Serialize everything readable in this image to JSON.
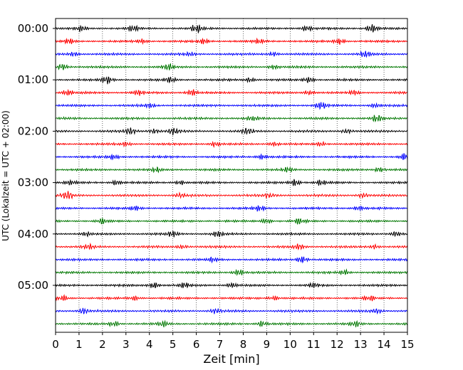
{
  "chart_data": {
    "type": "line",
    "subtype": "helicorder",
    "xlabel": "Zeit  [min]",
    "ylabel": "UTC (Lokalzeit = UTC + 02:00)",
    "xlim": [
      0,
      15
    ],
    "x_ticks": [
      "0",
      "1",
      "2",
      "3",
      "4",
      "5",
      "6",
      "7",
      "8",
      "9",
      "10",
      "11",
      "12",
      "13",
      "14",
      "15"
    ],
    "y_tick_labels": [
      "00:00",
      "01:00",
      "02:00",
      "03:00",
      "04:00",
      "05:00"
    ],
    "grid": "vertical dotted",
    "minutes_per_line": 15,
    "trace_colors": [
      "#000000",
      "#ff0000",
      "#0000ff",
      "#007700"
    ],
    "traces": [
      {
        "start": "00:00",
        "color": "#000000",
        "bursts": [
          [
            1.1,
            0.6
          ],
          [
            3.3,
            0.7
          ],
          [
            6.0,
            1.0
          ],
          [
            10.7,
            0.7
          ],
          [
            13.5,
            1.0
          ]
        ]
      },
      {
        "start": "00:15",
        "color": "#ff0000",
        "bursts": [
          [
            0.6,
            0.6
          ],
          [
            3.7,
            0.5
          ],
          [
            6.3,
            0.6
          ],
          [
            8.7,
            0.5
          ],
          [
            12.1,
            0.8
          ]
        ]
      },
      {
        "start": "00:30",
        "color": "#0000ff",
        "bursts": [
          [
            0.8,
            0.5
          ],
          [
            5.7,
            0.5
          ],
          [
            9.3,
            0.5
          ],
          [
            13.2,
            0.8
          ]
        ]
      },
      {
        "start": "00:45",
        "color": "#007700",
        "bursts": [
          [
            0.3,
            0.7
          ],
          [
            4.8,
            0.7
          ],
          [
            9.3,
            0.5
          ]
        ]
      },
      {
        "start": "01:00",
        "color": "#000000",
        "bursts": [
          [
            2.2,
            1.0
          ],
          [
            4.9,
            0.7
          ],
          [
            8.3,
            0.6
          ],
          [
            10.8,
            0.7
          ]
        ]
      },
      {
        "start": "01:15",
        "color": "#ff0000",
        "bursts": [
          [
            0.5,
            0.7
          ],
          [
            3.5,
            0.6
          ],
          [
            5.8,
            0.8
          ],
          [
            10.8,
            0.5
          ],
          [
            12.7,
            0.5
          ]
        ]
      },
      {
        "start": "01:30",
        "color": "#0000ff",
        "bursts": [
          [
            4.0,
            0.5
          ],
          [
            11.3,
            0.9
          ],
          [
            13.6,
            0.5
          ]
        ]
      },
      {
        "start": "01:45",
        "color": "#007700",
        "bursts": [
          [
            8.4,
            0.5
          ],
          [
            13.7,
            0.9
          ]
        ]
      },
      {
        "start": "02:00",
        "color": "#000000",
        "bursts": [
          [
            3.2,
            0.8
          ],
          [
            4.2,
            0.6
          ],
          [
            5.0,
            0.8
          ],
          [
            8.2,
            0.7
          ],
          [
            12.4,
            0.5
          ]
        ]
      },
      {
        "start": "02:15",
        "color": "#ff0000",
        "bursts": [
          [
            3.0,
            0.5
          ],
          [
            6.8,
            0.6
          ],
          [
            9.3,
            0.5
          ],
          [
            11.3,
            0.5
          ]
        ]
      },
      {
        "start": "02:30",
        "color": "#0000ff",
        "bursts": [
          [
            2.5,
            0.6
          ],
          [
            8.8,
            0.6
          ],
          [
            14.9,
            0.9
          ]
        ]
      },
      {
        "start": "02:45",
        "color": "#007700",
        "bursts": [
          [
            4.3,
            0.5
          ],
          [
            9.9,
            0.6
          ],
          [
            13.8,
            0.6
          ]
        ]
      },
      {
        "start": "03:00",
        "color": "#000000",
        "bursts": [
          [
            0.6,
            0.5
          ],
          [
            2.6,
            0.6
          ],
          [
            5.3,
            0.5
          ],
          [
            10.2,
            0.9
          ],
          [
            11.3,
            0.6
          ]
        ]
      },
      {
        "start": "03:15",
        "color": "#ff0000",
        "bursts": [
          [
            0.5,
            1.0
          ],
          [
            5.3,
            0.5
          ],
          [
            9.1,
            0.5
          ],
          [
            13.1,
            0.5
          ]
        ]
      },
      {
        "start": "03:30",
        "color": "#0000ff",
        "bursts": [
          [
            3.4,
            0.5
          ],
          [
            8.7,
            0.6
          ],
          [
            12.9,
            0.5
          ]
        ]
      },
      {
        "start": "03:45",
        "color": "#007700",
        "bursts": [
          [
            2.0,
            0.6
          ],
          [
            9.0,
            0.6
          ],
          [
            10.4,
            0.6
          ]
        ]
      },
      {
        "start": "04:00",
        "color": "#000000",
        "bursts": [
          [
            1.3,
            0.5
          ],
          [
            5.0,
            0.6
          ],
          [
            6.9,
            0.7
          ],
          [
            14.5,
            0.6
          ]
        ]
      },
      {
        "start": "04:15",
        "color": "#ff0000",
        "bursts": [
          [
            1.4,
            0.5
          ],
          [
            5.4,
            0.5
          ],
          [
            10.4,
            0.7
          ],
          [
            13.6,
            0.5
          ]
        ]
      },
      {
        "start": "04:30",
        "color": "#0000ff",
        "bursts": [
          [
            6.7,
            0.5
          ],
          [
            10.5,
            0.9
          ]
        ]
      },
      {
        "start": "04:45",
        "color": "#007700",
        "bursts": [
          [
            7.8,
            0.8
          ],
          [
            12.3,
            0.6
          ]
        ]
      },
      {
        "start": "05:00",
        "color": "#000000",
        "bursts": [
          [
            4.2,
            0.7
          ],
          [
            5.5,
            0.6
          ],
          [
            7.5,
            0.6
          ],
          [
            11.0,
            0.5
          ]
        ]
      },
      {
        "start": "05:15",
        "color": "#ff0000",
        "bursts": [
          [
            0.3,
            0.6
          ],
          [
            3.4,
            0.5
          ],
          [
            9.3,
            0.5
          ],
          [
            13.4,
            0.6
          ]
        ]
      },
      {
        "start": "05:30",
        "color": "#0000ff",
        "bursts": [
          [
            1.2,
            0.7
          ],
          [
            6.8,
            0.6
          ],
          [
            13.7,
            0.5
          ]
        ]
      },
      {
        "start": "05:45",
        "color": "#007700",
        "bursts": [
          [
            2.5,
            0.6
          ],
          [
            4.6,
            0.6
          ],
          [
            8.8,
            0.7
          ],
          [
            12.8,
            0.6
          ]
        ]
      }
    ]
  }
}
